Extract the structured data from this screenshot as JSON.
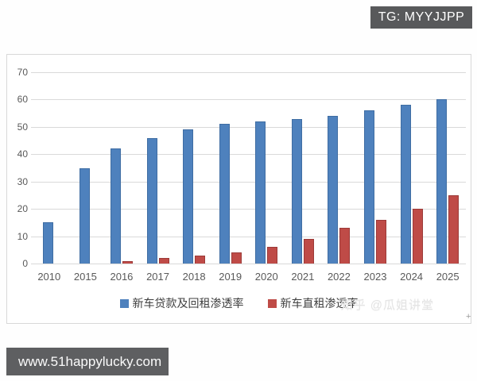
{
  "badges": {
    "tg": "TG: MYYJJPP",
    "url": "www.51happylucky.com"
  },
  "watermark": "知乎 @瓜姐讲堂",
  "chart_data": {
    "type": "bar",
    "title": "",
    "xlabel": "",
    "ylabel": "",
    "categories": [
      "2010",
      "2015",
      "2016",
      "2017",
      "2018",
      "2019",
      "2020",
      "2021",
      "2022",
      "2023",
      "2024",
      "2025"
    ],
    "series": [
      {
        "name": "新车贷款及回租渗透率",
        "color": "#4e81bd",
        "values": [
          15,
          35,
          42,
          46,
          49,
          51,
          52,
          53,
          54,
          56,
          58,
          60
        ]
      },
      {
        "name": "新车直租渗透率",
        "color": "#bf4b47",
        "values": [
          0,
          0,
          1,
          2,
          3,
          4,
          6,
          9,
          13,
          16,
          20,
          25
        ]
      }
    ],
    "ylim": [
      0,
      70
    ],
    "yticks": [
      0,
      10,
      20,
      30,
      40,
      50,
      60,
      70
    ],
    "grid": true,
    "legend_position": "bottom"
  }
}
